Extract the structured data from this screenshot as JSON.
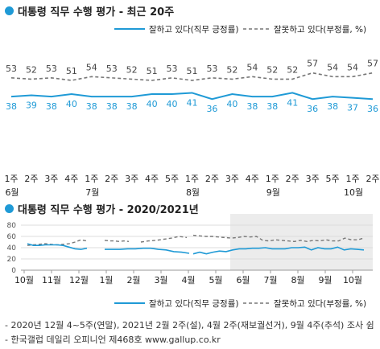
{
  "colors": {
    "approve": "#1f9ad6",
    "disapprove": "#777777",
    "accent_dot": "#1f9ad6",
    "shade": "#ececec"
  },
  "chart1": {
    "title": "대통령 직무 수행 평가 - 최근 20주"
  },
  "chart2": {
    "title": "대통령 직무 수행 평가 - 2020/2021년"
  },
  "footer": {
    "note": "- 2020년 12월 4~5주(연말), 2021년 2월 2주(설), 4월 2주(재보궐선거), 9월 4주(추석) 조사 쉼",
    "source": "- 한국갤럽 데일리 오피니언 제468호 www.gallup.co.kr"
  },
  "chart_data": [
    {
      "type": "line",
      "title": "대통령 직무 수행 평가 - 최근 20주",
      "categories": [
        "1주",
        "2주",
        "3주",
        "4주",
        "1주",
        "2주",
        "3주",
        "4주",
        "5주",
        "1주",
        "2주",
        "3주",
        "4주",
        "1주",
        "2주",
        "3주",
        "5주",
        "1주",
        "2주"
      ],
      "month_labels": [
        {
          "index": 0,
          "label": "6월"
        },
        {
          "index": 4,
          "label": "7월"
        },
        {
          "index": 9,
          "label": "8월"
        },
        {
          "index": 13,
          "label": "9월"
        },
        {
          "index": 17,
          "label": "10월"
        }
      ],
      "series": [
        {
          "name": "잘하고 있다(직무 긍정률)",
          "values": [
            38,
            39,
            38,
            40,
            38,
            38,
            38,
            40,
            40,
            41,
            36,
            40,
            38,
            38,
            41,
            36,
            38,
            37,
            36
          ]
        },
        {
          "name": "잘못하고 있다(부정률, %)",
          "values": [
            53,
            52,
            53,
            51,
            54,
            53,
            52,
            51,
            53,
            51,
            53,
            52,
            54,
            52,
            52,
            57,
            54,
            54,
            57
          ]
        }
      ],
      "legend_position": "top",
      "grid": false
    },
    {
      "type": "line",
      "title": "대통령 직무 수행 평가 - 2020/2021년",
      "ylim": [
        0,
        80
      ],
      "yticks": [
        0,
        20,
        40,
        60,
        80
      ],
      "month_ticks": [
        "10월",
        "11월",
        "12월",
        "1월",
        "2월",
        "3월",
        "4월",
        "5월",
        "6월",
        "7월",
        "8월",
        "9월",
        "10월"
      ],
      "x_year_labels": [],
      "series": [
        {
          "name": "잘하고 있다(직무 긍정률)",
          "segments": [
            [
              47,
              44,
              44,
              45,
              45,
              45,
              44,
              41,
              38,
              37,
              39
            ],
            [
              37,
              37,
              37,
              38,
              38,
              39,
              39,
              37,
              36,
              33,
              32,
              30
            ],
            [
              29,
              32,
              29,
              32,
              34,
              33,
              36,
              38,
              38,
              39,
              39,
              40,
              38,
              38,
              38,
              40,
              40,
              41,
              36,
              40,
              38,
              38,
              41,
              36,
              38,
              37,
              36
            ]
          ]
        },
        {
          "name": "잘못하고 있다(부정률, %)",
          "segments": [
            [
              44,
              45,
              46,
              47,
              46,
              45,
              46,
              47,
              50,
              54,
              52
            ],
            [
              53,
              52,
              52,
              51,
              52,
              51
            ],
            [
              50,
              52,
              53,
              55,
              57,
              60,
              58
            ],
            [
              62,
              61,
              60,
              60,
              59,
              58,
              57,
              58,
              60,
              59,
              60,
              53,
              52,
              54,
              53,
              52,
              51,
              53,
              51,
              53,
              52,
              54,
              52,
              52,
              57,
              54,
              54,
              57
            ]
          ]
        }
      ],
      "legend_position": "bottom",
      "grid": true
    }
  ]
}
